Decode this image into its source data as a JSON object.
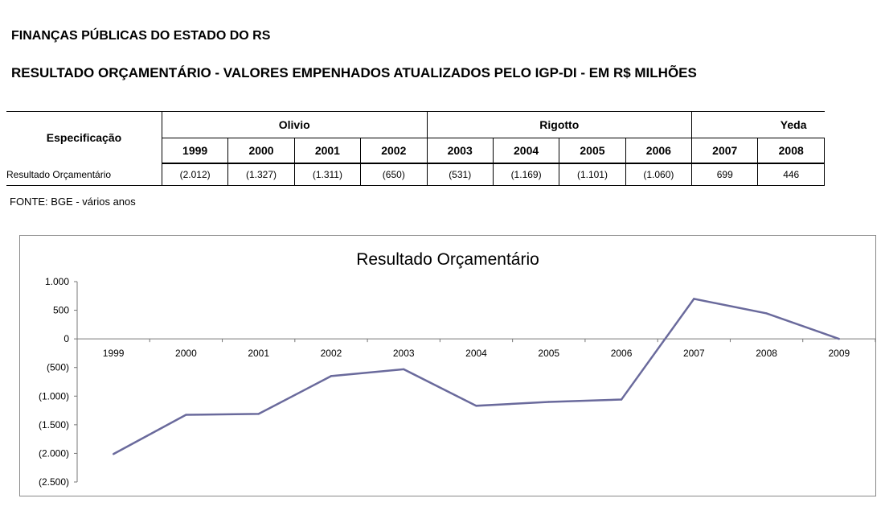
{
  "header": {
    "title1": "FINANÇAS PÚBLICAS DO ESTADO DO RS",
    "title2": "RESULTADO ORÇAMENTÁRIO - VALORES EMPENHADOS ATUALIZADOS PELO IGP-DI - EM R$ MILHÕES"
  },
  "table": {
    "spec_header": "Especificação",
    "groups": [
      "Olivio",
      "Rigotto",
      "Yeda"
    ],
    "years": [
      "1999",
      "2000",
      "2001",
      "2002",
      "2003",
      "2004",
      "2005",
      "2006",
      "2007",
      "2008"
    ],
    "row_label": "Resultado Orçamentário",
    "values": [
      "(2.012)",
      "(1.327)",
      "(1.311)",
      "(650)",
      "(531)",
      "(1.169)",
      "(1.101)",
      "(1.060)",
      "699",
      "446"
    ]
  },
  "source": "FONTE: BGE - vários anos",
  "chart_data": {
    "type": "line",
    "title": "Resultado Orçamentário",
    "categories": [
      "1999",
      "2000",
      "2001",
      "2002",
      "2003",
      "2004",
      "2005",
      "2006",
      "2007",
      "2008",
      "2009"
    ],
    "series": [
      {
        "values": [
          -2012,
          -1327,
          -1311,
          -650,
          -531,
          -1169,
          -1101,
          -1060,
          699,
          446,
          0
        ]
      }
    ],
    "ylim": [
      -2500,
      1000
    ],
    "yticks": [
      1000,
      500,
      0,
      -500,
      -1000,
      -1500,
      -2000,
      -2500
    ],
    "ytick_labels": [
      "1.000",
      "500",
      "0",
      "(500)",
      "(1.000)",
      "(1.500)",
      "(2.000)",
      "(2.500)"
    ],
    "line_color": "#6a6a9c",
    "grid": false,
    "legend": "none"
  }
}
